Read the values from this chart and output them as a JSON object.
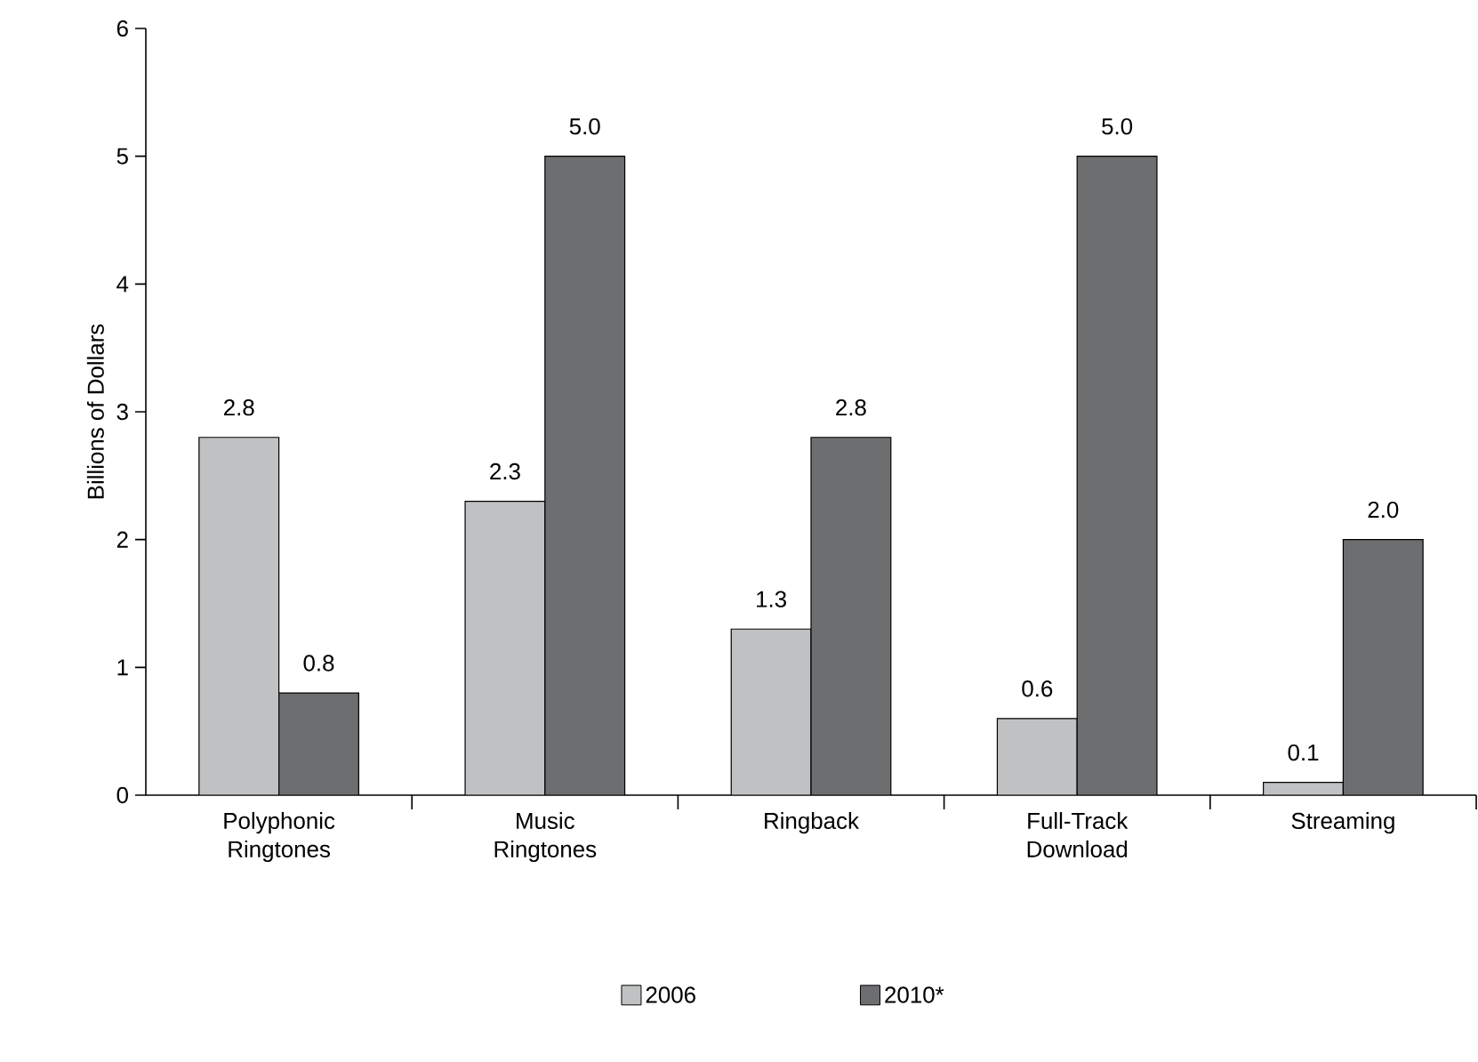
{
  "chart_data": {
    "type": "bar",
    "ylabel": "Billions of Dollars",
    "categories": [
      "Polyphonic Ringtones",
      "Music Ringtones",
      "Ringback",
      "Full-Track Download",
      "Streaming"
    ],
    "series": [
      {
        "name": "2006",
        "color": "#c0c1c3",
        "values": [
          2.8,
          2.3,
          1.3,
          0.6,
          0.1
        ],
        "value_labels": [
          "2.8",
          "2.3",
          "1.3",
          "0.6",
          "0.1"
        ]
      },
      {
        "name": "2010*",
        "color": "#6d6e70",
        "values": [
          0.8,
          5.0,
          2.8,
          5.0,
          2.0
        ],
        "value_labels": [
          "0.8",
          "5.0",
          "2.8",
          "5.0",
          "2.0"
        ]
      }
    ],
    "ylim": [
      0,
      6
    ],
    "yticks": [
      0,
      1,
      2,
      3,
      4,
      5,
      6
    ],
    "grid": false,
    "legend": "bottom"
  }
}
